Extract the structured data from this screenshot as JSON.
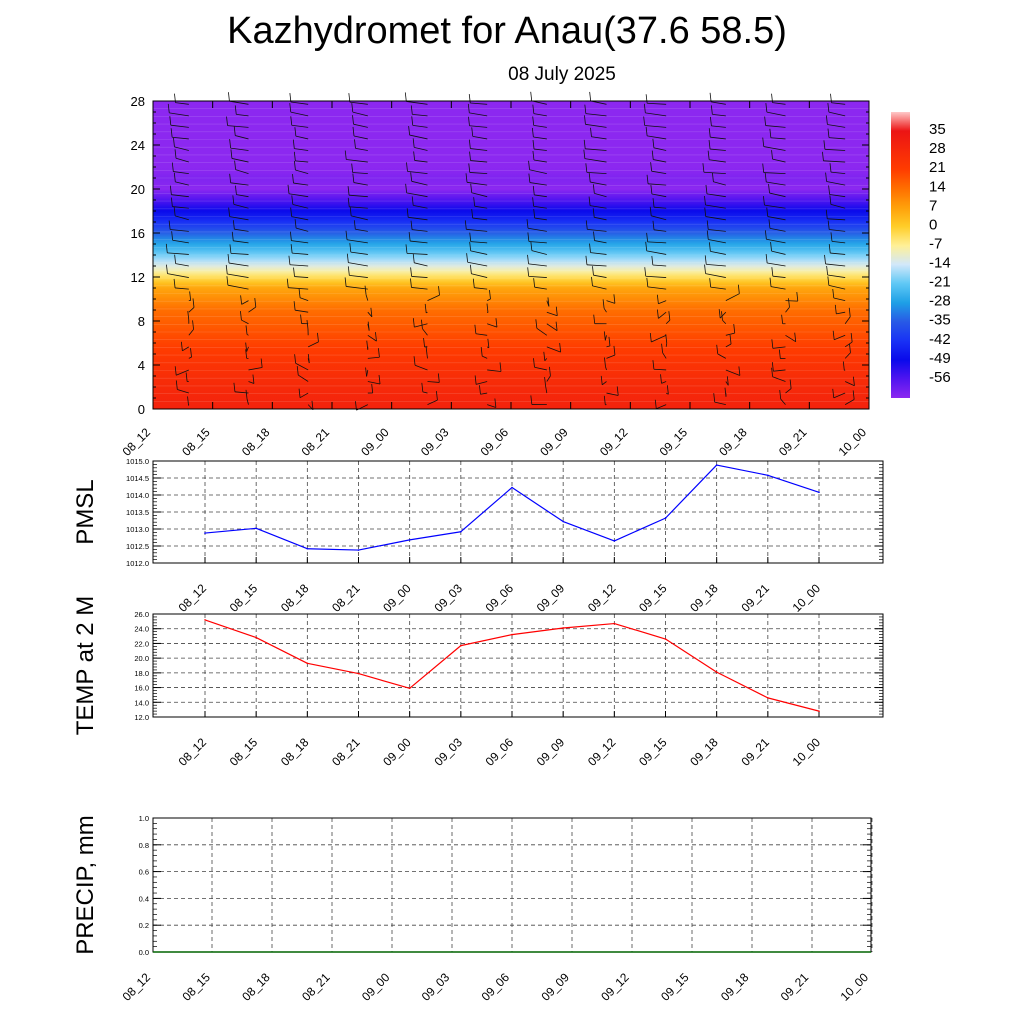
{
  "title": "Kazhydromet for Anau(37.6 58.5)",
  "subtitle": "08 July 2025",
  "chart_data": [
    {
      "type": "heatmap",
      "name": "cross-section",
      "x_ticks": [
        "08_12",
        "08_15",
        "08_18",
        "08_21",
        "09_00",
        "09_03",
        "09_06",
        "09_09",
        "09_12",
        "09_15",
        "09_18",
        "09_21",
        "10_00"
      ],
      "y_ticks": [
        0,
        4,
        8,
        12,
        16,
        20,
        24,
        28
      ],
      "ylim": [
        0,
        28
      ],
      "colorbar_labels": [
        35,
        28,
        21,
        14,
        7,
        0,
        -7,
        -14,
        -21,
        -28,
        -35,
        -42,
        -49,
        -56
      ],
      "colorbar_range": [
        -63,
        42
      ],
      "temperature_profile": [
        [
          0,
          30
        ],
        [
          3,
          26
        ],
        [
          6,
          20
        ],
        [
          9,
          14
        ],
        [
          11,
          6
        ],
        [
          12.5,
          -8
        ],
        [
          13.2,
          -14
        ],
        [
          15,
          -27
        ],
        [
          17,
          -42
        ],
        [
          19,
          -56
        ],
        [
          20,
          -63
        ],
        [
          21.3,
          -61
        ],
        [
          22,
          -66
        ],
        [
          28,
          -70
        ]
      ],
      "colors": {
        "hot": "#e00000",
        "orange": "#ff8c00",
        "yellow": "#fff5a0",
        "cyan": "#37b8f0",
        "blue": "#1010f0",
        "violet": "#8a28f0"
      }
    },
    {
      "type": "line",
      "ylabel": "PMSL",
      "x": [
        "08_12",
        "08_15",
        "08_18",
        "08_21",
        "09_00",
        "09_03",
        "09_06",
        "09_09",
        "09_12",
        "09_15",
        "09_18",
        "09_21",
        "10_00"
      ],
      "y_ticks": [
        "1012.0",
        "1012.5",
        "1013.0",
        "1013.5",
        "1014.0",
        "1014.5",
        "1015.0"
      ],
      "ylim": [
        1012.0,
        1015.0
      ],
      "values": [
        1012.88,
        1013.02,
        1012.42,
        1012.38,
        1012.68,
        1012.92,
        1014.22,
        1013.22,
        1012.65,
        1013.32,
        1014.88,
        1014.58,
        1014.08
      ],
      "color": "#0000ff"
    },
    {
      "type": "line",
      "ylabel": "TEMP at 2 M",
      "x": [
        "08_12",
        "08_15",
        "08_18",
        "08_21",
        "09_00",
        "09_03",
        "09_06",
        "09_09",
        "09_12",
        "09_15",
        "09_18",
        "09_21",
        "10_00"
      ],
      "y_ticks": [
        "12.0",
        "14.0",
        "16.0",
        "18.0",
        "20.0",
        "22.0",
        "24.0",
        "26.0"
      ],
      "ylim": [
        12.0,
        26.0
      ],
      "values": [
        25.2,
        22.8,
        19.3,
        17.9,
        15.9,
        21.7,
        23.2,
        24.1,
        24.7,
        22.6,
        18.1,
        14.6,
        12.8
      ],
      "color": "#ff0000"
    },
    {
      "type": "bar",
      "ylabel": "PRECIP, mm",
      "x": [
        "08_12",
        "08_15",
        "08_18",
        "08_21",
        "09_00",
        "09_03",
        "09_06",
        "09_09",
        "09_12",
        "09_15",
        "09_18",
        "09_21",
        "10_00"
      ],
      "y_ticks": [
        "0.0",
        "0.2",
        "0.4",
        "0.6",
        "0.8",
        "1.0"
      ],
      "ylim": [
        0.0,
        1.0
      ],
      "values": [
        0,
        0,
        0,
        0,
        0,
        0,
        0,
        0,
        0,
        0,
        0,
        0,
        0
      ],
      "color": "#006400"
    }
  ]
}
